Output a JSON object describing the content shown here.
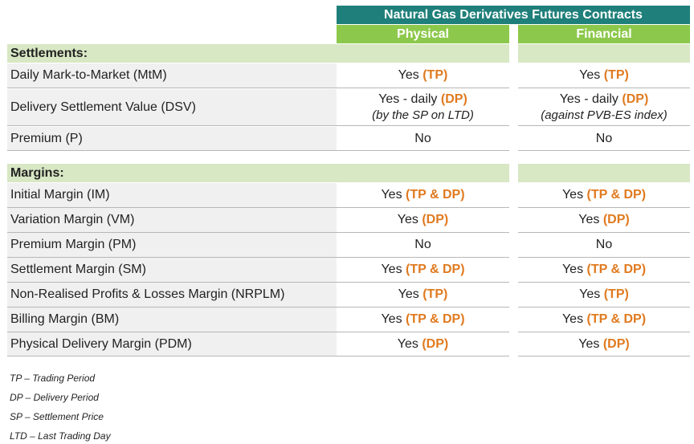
{
  "header": {
    "title": "Natural Gas Derivatives Futures Contracts",
    "physical": "Physical",
    "financial": "Financial"
  },
  "settlements": {
    "heading": "Settlements:",
    "rows": [
      {
        "label": "Daily Mark-to-Market (MtM)",
        "phys": {
          "text": "Yes",
          "accent": "(TP)"
        },
        "fin": {
          "text": "Yes",
          "accent": "(TP)"
        }
      },
      {
        "label": "Delivery Settlement Value (DSV)",
        "phys": {
          "text": "Yes - daily",
          "accent": "(DP)",
          "note": "(by the SP on LTD)"
        },
        "fin": {
          "text": "Yes - daily",
          "accent": "(DP)",
          "note": "(against PVB-ES index)"
        }
      },
      {
        "label": "Premium (P)",
        "phys": {
          "text": "No"
        },
        "fin": {
          "text": "No"
        }
      }
    ]
  },
  "margins": {
    "heading": "Margins:",
    "rows": [
      {
        "label": "Initial Margin (IM)",
        "phys": {
          "text": "Yes",
          "accent": "(TP & DP)"
        },
        "fin": {
          "text": "Yes",
          "accent": "(TP & DP)"
        }
      },
      {
        "label": "Variation Margin (VM)",
        "phys": {
          "text": "Yes",
          "accent": "(DP)"
        },
        "fin": {
          "text": "Yes",
          "accent": "(DP)"
        }
      },
      {
        "label": "Premium Margin (PM)",
        "phys": {
          "text": "No"
        },
        "fin": {
          "text": "No"
        }
      },
      {
        "label": "Settlement Margin (SM)",
        "phys": {
          "text": "Yes",
          "accent": "(TP & DP)"
        },
        "fin": {
          "text": "Yes",
          "accent": "(TP & DP)"
        }
      },
      {
        "label": "Non-Realised Profits & Losses Margin (NRPLM)",
        "phys": {
          "text": "Yes",
          "accent": "(TP)"
        },
        "fin": {
          "text": "Yes",
          "accent": "(TP)"
        }
      },
      {
        "label": "Billing Margin (BM)",
        "phys": {
          "text": "Yes",
          "accent": "(TP & DP)"
        },
        "fin": {
          "text": "Yes",
          "accent": "(TP & DP)"
        }
      },
      {
        "label": "Physical Delivery Margin (PDM)",
        "phys": {
          "text": "Yes",
          "accent": "(DP)"
        },
        "fin": {
          "text": "Yes",
          "accent": "(DP)"
        }
      }
    ]
  },
  "footnotes": [
    "TP – Trading Period",
    "DP – Delivery Period",
    "SP – Settlement Price",
    "LTD – Last Trading Day"
  ],
  "colors": {
    "header_teal": "#1f7f7a",
    "header_green": "#8cc84b",
    "section_bg": "#d8e7c4",
    "accent_orange": "#e07a1f"
  }
}
